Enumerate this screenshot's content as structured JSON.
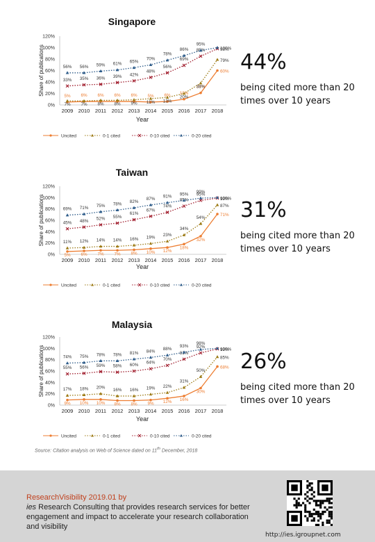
{
  "chart_data": [
    {
      "type": "line",
      "title": "Singapore",
      "xlabel": "Year",
      "ylabel": "Share of publications",
      "ylim": [
        0,
        120
      ],
      "yticks": [
        "0%",
        "20%",
        "40%",
        "60%",
        "80%",
        "100%",
        "120%"
      ],
      "categories": [
        "2009",
        "2010",
        "2011",
        "2012",
        "2013",
        "2014",
        "2015",
        "2016",
        "2017",
        "2018"
      ],
      "legend_position": "bottom",
      "series": [
        {
          "name": "Uncited",
          "color": "#ed7d31",
          "values": [
            5,
            6,
            6,
            6,
            6,
            5,
            6,
            10,
            21,
            60
          ],
          "labels": [
            "5%",
            "6%",
            "6%",
            "6%",
            "6%",
            "5%",
            "6%",
            "10%",
            "21%",
            "60%"
          ]
        },
        {
          "name": "0-1 cited",
          "color": "#9c7a14",
          "values": [
            7,
            7,
            8,
            8,
            9,
            11,
            13,
            20,
            38,
            79
          ],
          "labels": [
            "7%",
            "7%",
            "8%",
            "8%",
            "9%",
            "11%",
            "13%",
            "20%",
            "38%",
            "79%"
          ]
        },
        {
          "name": "0-10 cited",
          "color": "#a01c2c",
          "values": [
            33,
            35,
            36,
            39,
            42,
            48,
            56,
            69,
            85,
            98
          ],
          "labels": [
            "33%",
            "35%",
            "36%",
            "39%",
            "42%",
            "48%",
            "56%",
            "69%",
            "85%",
            "98%"
          ]
        },
        {
          "name": "0-20 cited",
          "color": "#2e5c8a",
          "values": [
            56,
            56,
            59,
            61,
            65,
            70,
            78,
            86,
            95,
            100
          ],
          "labels": [
            "56%",
            "56%",
            "59%",
            "61%",
            "65%",
            "70%",
            "78%",
            "86%",
            "95%",
            "100%"
          ]
        }
      ]
    },
    {
      "type": "line",
      "title": "Taiwan",
      "xlabel": "Year",
      "ylabel": "Share of publications",
      "ylim": [
        0,
        120
      ],
      "yticks": [
        "0%",
        "20%",
        "40%",
        "60%",
        "80%",
        "100%",
        "120%"
      ],
      "categories": [
        "2009",
        "2010",
        "2011",
        "2012",
        "2013",
        "2014",
        "2015",
        "2016",
        "2017",
        "2018"
      ],
      "legend_position": "bottom",
      "series": [
        {
          "name": "Uncited",
          "color": "#ed7d31",
          "values": [
            5,
            6,
            7,
            7,
            8,
            10,
            12,
            18,
            32,
            71
          ],
          "labels": [
            "5%",
            "6%",
            "7%",
            "7%",
            "8%",
            "10%",
            "12%",
            "18%",
            "32%",
            "71%"
          ]
        },
        {
          "name": "0-1 cited",
          "color": "#9c7a14",
          "values": [
            11,
            12,
            14,
            14,
            16,
            19,
            23,
            34,
            54,
            87
          ],
          "labels": [
            "11%",
            "12%",
            "14%",
            "14%",
            "16%",
            "19%",
            "23%",
            "34%",
            "54%",
            "87%"
          ]
        },
        {
          "name": "0-10 cited",
          "color": "#a01c2c",
          "values": [
            45,
            48,
            52,
            55,
            61,
            67,
            74,
            85,
            95,
            99
          ],
          "labels": [
            "45%",
            "48%",
            "52%",
            "55%",
            "61%",
            "67%",
            "74%",
            "85%",
            "95%",
            "99%"
          ]
        },
        {
          "name": "0-20 cited",
          "color": "#2e5c8a",
          "values": [
            69,
            71,
            75,
            78,
            82,
            87,
            91,
            95,
            99,
            100
          ],
          "labels": [
            "69%",
            "71%",
            "75%",
            "78%",
            "82%",
            "87%",
            "91%",
            "95%",
            "99%",
            "100%"
          ]
        }
      ]
    },
    {
      "type": "line",
      "title": "Malaysia",
      "xlabel": "Year",
      "ylabel": "Share of publications",
      "ylim": [
        0,
        120
      ],
      "yticks": [
        "0%",
        "20%",
        "40%",
        "60%",
        "80%",
        "100%",
        "120%"
      ],
      "categories": [
        "2009",
        "2010",
        "2011",
        "2012",
        "2013",
        "2014",
        "2015",
        "2016",
        "2017",
        "2018"
      ],
      "legend_position": "bottom",
      "series": [
        {
          "name": "Uncited",
          "color": "#ed7d31",
          "values": [
            9,
            10,
            10,
            8,
            8,
            9,
            12,
            16,
            30,
            68
          ],
          "labels": [
            "9%",
            "10%",
            "10%",
            "8%",
            "8%",
            "9%",
            "12%",
            "16%",
            "30%",
            "68%"
          ]
        },
        {
          "name": "0-1 cited",
          "color": "#9c7a14",
          "values": [
            17,
            18,
            20,
            16,
            16,
            19,
            22,
            31,
            50,
            85
          ],
          "labels": [
            "17%",
            "18%",
            "20%",
            "16%",
            "16%",
            "19%",
            "22%",
            "31%",
            "50%",
            "85%"
          ]
        },
        {
          "name": "0-10 cited",
          "color": "#a01c2c",
          "values": [
            55,
            56,
            59,
            58,
            60,
            64,
            70,
            81,
            92,
            99
          ],
          "labels": [
            "55%",
            "56%",
            "59%",
            "58%",
            "60%",
            "64%",
            "70%",
            "81%",
            "92%",
            "99%"
          ]
        },
        {
          "name": "0-20 cited",
          "color": "#2e5c8a",
          "values": [
            74,
            75,
            78,
            78,
            81,
            84,
            88,
            93,
            98,
            100
          ],
          "labels": [
            "74%",
            "75%",
            "78%",
            "78%",
            "81%",
            "84%",
            "88%",
            "93%",
            "98%",
            "100%"
          ]
        }
      ]
    }
  ],
  "stats": [
    {
      "percent": "44%",
      "text": "being cited more than 20 times over 10 years"
    },
    {
      "percent": "31%",
      "text": "being cited more than 20 times over 10 years"
    },
    {
      "percent": "26%",
      "text": "being cited more than 20 times over 10 years"
    }
  ],
  "source": "Source: Citation analysis on Web of Science dated on",
  "source_date": "11",
  "source_date_suffix": "th",
  "source_date_rest": "December, 2018",
  "footer": {
    "title": "ResearchVisibility 2019.01 by",
    "ies": "ies",
    "text": "Research Consulting that provides research services for better engagement and impact to accelerate your research collaboration and visibility",
    "url": "http://ies.igroupnet.com",
    "qr_icon": "qr-code-icon"
  }
}
